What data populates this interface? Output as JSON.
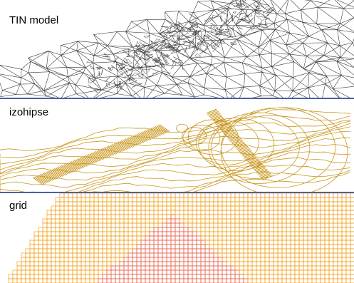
{
  "panels": [
    {
      "label": "TIN model",
      "color": "#3c3c3c"
    },
    {
      "label": "izohipse",
      "color": "#c8961e"
    },
    {
      "label": "grid",
      "color": "#f0a020",
      "inner_color": "#e8604a"
    }
  ],
  "divider_color": "#4a5fa8"
}
